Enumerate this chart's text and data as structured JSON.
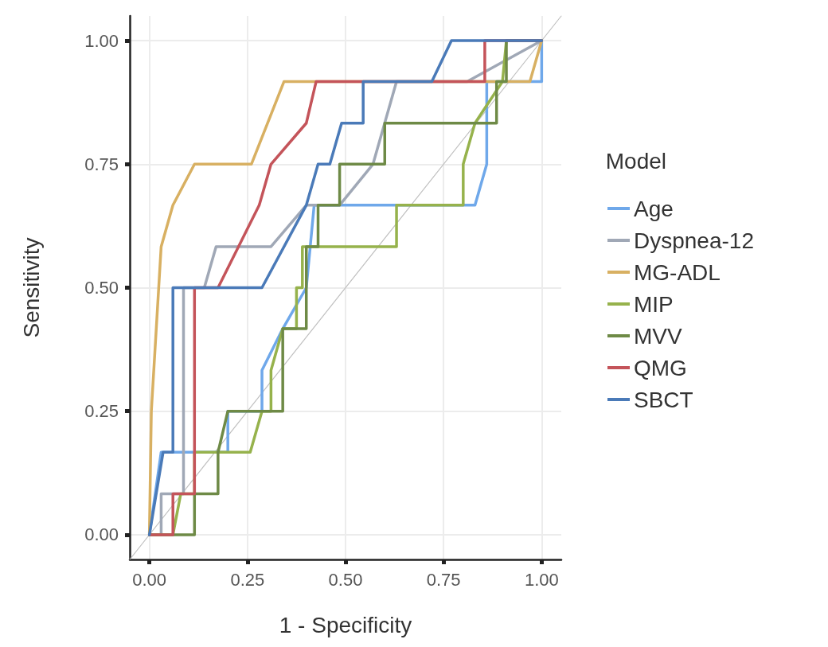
{
  "chart_data": {
    "type": "line",
    "xlabel": "1 - Specificity",
    "ylabel": "Sensitivity",
    "legend_title": "Model",
    "legend": "right",
    "grid": true,
    "marker": "none",
    "line_style": "solid",
    "xlim": [
      -0.05,
      1.05
    ],
    "ylim": [
      -0.05,
      1.05
    ],
    "xticks": [
      {
        "value": 0,
        "label": "0.00"
      },
      {
        "value": 0.25,
        "label": "0.25"
      },
      {
        "value": 0.5,
        "label": "0.50"
      },
      {
        "value": 0.75,
        "label": "0.75"
      },
      {
        "value": 1,
        "label": "1.00"
      }
    ],
    "yticks": [
      {
        "value": 0,
        "label": "0.00"
      },
      {
        "value": 0.25,
        "label": "0.25"
      },
      {
        "value": 0.5,
        "label": "0.50"
      },
      {
        "value": 0.75,
        "label": "0.75"
      },
      {
        "value": 1,
        "label": "1.00"
      }
    ],
    "series": [
      {
        "type": "line",
        "color": "#c0c0c0",
        "x": [
          -0.05,
          1.05
        ],
        "values": [
          -0.05,
          1.05
        ]
      },
      {
        "name": "Age",
        "color": "#6fa8ea",
        "x": [
          0,
          0.03,
          0.06,
          0.2,
          0.2,
          0.287,
          0.287,
          0.34,
          0.4,
          0.41,
          0.42,
          0.805,
          0.83,
          0.86,
          0.86,
          1,
          1
        ],
        "values": [
          0,
          0.167,
          0.167,
          0.167,
          0.25,
          0.25,
          0.333,
          0.417,
          0.5,
          0.583,
          0.667,
          0.667,
          0.667,
          0.75,
          0.917,
          0.917,
          1
        ]
      },
      {
        "name": "Dyspnea-12",
        "color": "#a0a8b6",
        "x": [
          0,
          0.03,
          0.03,
          0.087,
          0.087,
          0.14,
          0.17,
          0.31,
          0.4,
          0.485,
          0.57,
          0.63,
          0.81,
          1
        ],
        "values": [
          0,
          0,
          0.083,
          0.083,
          0.5,
          0.5,
          0.583,
          0.583,
          0.667,
          0.667,
          0.75,
          0.917,
          0.917,
          1
        ]
      },
      {
        "name": "MG-ADL",
        "color": "#d8b062",
        "x": [
          0,
          0.005,
          0.03,
          0.06,
          0.115,
          0.26,
          0.343,
          0.97,
          1
        ],
        "values": [
          0,
          0.25,
          0.583,
          0.667,
          0.75,
          0.75,
          0.917,
          0.917,
          1
        ]
      },
      {
        "name": "MIP",
        "color": "#96b24c",
        "x": [
          0,
          0.06,
          0.08,
          0.115,
          0.115,
          0.257,
          0.287,
          0.31,
          0.31,
          0.34,
          0.375,
          0.375,
          0.39,
          0.39,
          0.63,
          0.63,
          0.8,
          0.8,
          0.83,
          0.9,
          0.91,
          1
        ],
        "values": [
          0,
          0,
          0.083,
          0.083,
          0.167,
          0.167,
          0.25,
          0.25,
          0.333,
          0.417,
          0.417,
          0.5,
          0.5,
          0.583,
          0.583,
          0.667,
          0.667,
          0.75,
          0.833,
          0.917,
          1,
          1
        ]
      },
      {
        "name": "MVV",
        "color": "#6e8a46",
        "x": [
          0,
          0.115,
          0.115,
          0.175,
          0.175,
          0.2,
          0.34,
          0.34,
          0.4,
          0.4,
          0.43,
          0.43,
          0.485,
          0.485,
          0.6,
          0.6,
          0.885,
          0.885,
          0.91,
          0.91,
          1
        ],
        "values": [
          0,
          0,
          0.083,
          0.083,
          0.167,
          0.25,
          0.25,
          0.417,
          0.417,
          0.583,
          0.583,
          0.667,
          0.667,
          0.75,
          0.75,
          0.833,
          0.833,
          0.917,
          0.917,
          1,
          1
        ]
      },
      {
        "name": "QMG",
        "color": "#c4545a",
        "x": [
          0,
          0.06,
          0.06,
          0.115,
          0.115,
          0.175,
          0.28,
          0.31,
          0.4,
          0.425,
          0.855,
          0.855,
          1
        ],
        "values": [
          0,
          0,
          0.083,
          0.083,
          0.5,
          0.5,
          0.667,
          0.75,
          0.833,
          0.917,
          0.917,
          1,
          1
        ]
      },
      {
        "name": "SBCT",
        "color": "#4a7ab8",
        "x": [
          0,
          0.035,
          0.06,
          0.06,
          0.287,
          0.4,
          0.43,
          0.46,
          0.49,
          0.545,
          0.545,
          0.72,
          0.77,
          1
        ],
        "values": [
          0,
          0.167,
          0.167,
          0.5,
          0.5,
          0.667,
          0.75,
          0.75,
          0.833,
          0.833,
          0.917,
          0.917,
          1,
          1
        ]
      }
    ]
  }
}
